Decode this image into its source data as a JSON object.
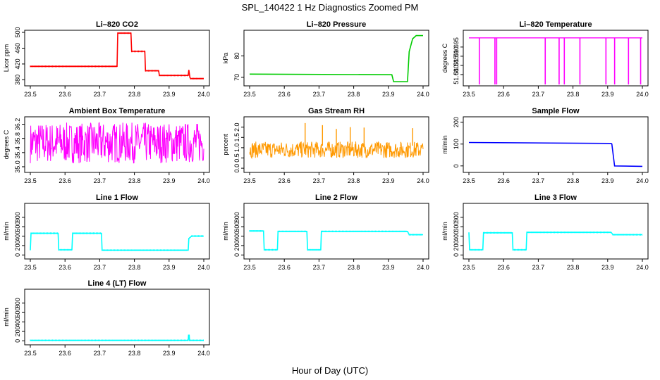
{
  "figure": {
    "title": "SPL_140422  1 Hz Diagnostics Zoomed PM",
    "xlabel": "Hour of Day (UTC)"
  },
  "chart_data": [
    {
      "id": "co2",
      "type": "line",
      "title": "Li–820 CO2",
      "ylabel": "Licor ppm",
      "color": "#ff0000",
      "xlim": [
        23.5,
        24.0
      ],
      "ylim": [
        370,
        500
      ],
      "yticks": [
        "380",
        "420",
        "460",
        "500"
      ],
      "xticks": [
        "23.5",
        "23.6",
        "23.7",
        "23.8",
        "23.9",
        "24.0"
      ],
      "x": [
        23.5,
        23.75,
        23.752,
        23.79,
        23.792,
        23.83,
        23.832,
        23.87,
        23.872,
        23.955,
        23.957,
        23.96,
        23.962,
        24.0
      ],
      "y": [
        414,
        414,
        498,
        498,
        452,
        452,
        403,
        403,
        391,
        391,
        405,
        386,
        383,
        383
      ]
    },
    {
      "id": "pressure",
      "type": "line",
      "title": "Li–820 Pressure",
      "ylabel": "kPa",
      "color": "#00cc00",
      "xlim": [
        23.5,
        24.0
      ],
      "ylim": [
        67,
        91
      ],
      "yticks": [
        "70",
        "80"
      ],
      "xticks": [
        "23.5",
        "23.6",
        "23.7",
        "23.8",
        "23.9",
        "24.0"
      ],
      "x": [
        23.5,
        23.91,
        23.915,
        23.955,
        23.96,
        23.97,
        23.98,
        24.0
      ],
      "y": [
        71.5,
        71.2,
        68.0,
        68.0,
        82.0,
        88.0,
        89.5,
        89.5
      ]
    },
    {
      "id": "temp",
      "type": "line",
      "title": "Li–820 Temperature",
      "ylabel": "degrees C",
      "color": "#ff00ff",
      "xlim": [
        23.5,
        24.0
      ],
      "ylim": [
        51.675,
        51.703
      ],
      "yticks": [
        "51.680",
        "51.685",
        "51.690",
        "51.695"
      ],
      "xticks": [
        "23.5",
        "23.6",
        "23.7",
        "23.8",
        "23.9",
        "24.0"
      ],
      "baseline": 51.7,
      "drops": [
        23.53,
        23.575,
        23.58,
        23.72,
        23.76,
        23.775,
        23.82,
        23.895,
        23.92,
        23.96,
        23.995
      ]
    },
    {
      "id": "ambient",
      "type": "line",
      "title": "Ambient Box Temperature",
      "ylabel": "degrees C",
      "color": "#ff00ff",
      "xlim": [
        23.5,
        24.0
      ],
      "ylim": [
        34.9,
        36.35
      ],
      "yticks": [
        "35.0",
        "35.4",
        "35.8",
        "36.2"
      ],
      "xticks": [
        "23.5",
        "23.6",
        "23.7",
        "23.8",
        "23.9",
        "24.0"
      ],
      "noise_range": [
        35.1,
        36.25
      ]
    },
    {
      "id": "rh",
      "type": "line",
      "title": "Gas Stream RH",
      "ylabel": "percent",
      "color": "#ff9900",
      "xlim": [
        23.5,
        24.0
      ],
      "ylim": [
        -0.1,
        2.4
      ],
      "yticks": [
        "0.0",
        "0.5",
        "1.0",
        "1.5",
        "2.0"
      ],
      "xticks": [
        "23.5",
        "23.6",
        "23.7",
        "23.8",
        "23.9",
        "24.0"
      ],
      "noise_range": [
        0.5,
        1.3
      ],
      "spikes": [
        23.66,
        23.71,
        23.75,
        23.79,
        23.83,
        23.97
      ]
    },
    {
      "id": "sample_flow",
      "type": "line",
      "title": "Sample Flow",
      "ylabel": "ml/min",
      "color": "#0000ff",
      "xlim": [
        23.5,
        24.0
      ],
      "ylim": [
        -20,
        215
      ],
      "yticks": [
        "0",
        "100",
        "200"
      ],
      "xticks": [
        "23.5",
        "23.6",
        "23.7",
        "23.8",
        "23.9",
        "24.0"
      ],
      "x": [
        23.5,
        23.91,
        23.912,
        23.92,
        24.0
      ],
      "y": [
        107,
        103,
        100,
        0,
        -2
      ]
    },
    {
      "id": "line1",
      "type": "line",
      "title": "Line 1 Flow",
      "ylabel": "ml/min",
      "color": "#00ffff",
      "xlim": [
        23.5,
        24.0
      ],
      "ylim": [
        -40,
        1050
      ],
      "yticks": [
        "0",
        "200",
        "400",
        "600",
        "800"
      ],
      "xticks": [
        "23.5",
        "23.6",
        "23.7",
        "23.8",
        "23.9",
        "24.0"
      ],
      "x": [
        23.5,
        23.502,
        23.58,
        23.582,
        23.62,
        23.622,
        23.705,
        23.707,
        23.955,
        23.957,
        23.965,
        24.0
      ],
      "y": [
        100,
        460,
        460,
        110,
        110,
        460,
        460,
        100,
        100,
        350,
        400,
        400
      ]
    },
    {
      "id": "line2",
      "type": "line",
      "title": "Line 2 Flow",
      "ylabel": "ml/min",
      "color": "#00ffff",
      "xlim": [
        23.5,
        24.0
      ],
      "ylim": [
        -40,
        1050
      ],
      "yticks": [
        "0",
        "200",
        "400",
        "600",
        "800"
      ],
      "xticks": [
        "23.5",
        "23.6",
        "23.7",
        "23.8",
        "23.9",
        "24.0"
      ],
      "x": [
        23.5,
        23.54,
        23.542,
        23.58,
        23.582,
        23.665,
        23.667,
        23.705,
        23.707,
        23.955,
        23.96,
        24.0
      ],
      "y": [
        510,
        510,
        110,
        110,
        500,
        500,
        110,
        110,
        500,
        500,
        430,
        430
      ]
    },
    {
      "id": "line3",
      "type": "line",
      "title": "Line 3 Flow",
      "ylabel": "ml/min",
      "color": "#00ffff",
      "xlim": [
        23.5,
        24.0
      ],
      "ylim": [
        -40,
        1050
      ],
      "yticks": [
        "0",
        "200",
        "400",
        "600",
        "800"
      ],
      "xticks": [
        "23.5",
        "23.6",
        "23.7",
        "23.8",
        "23.9",
        "24.0"
      ],
      "x": [
        23.5,
        23.502,
        23.504,
        23.54,
        23.542,
        23.625,
        23.627,
        23.665,
        23.667,
        23.91,
        23.915,
        24.0
      ],
      "y": [
        480,
        110,
        110,
        110,
        470,
        470,
        110,
        110,
        480,
        480,
        430,
        430
      ]
    },
    {
      "id": "line4",
      "type": "line",
      "title": "Line 4 (LT) Flow",
      "ylabel": "ml/min",
      "color": "#00ffff",
      "xlim": [
        23.5,
        24.0
      ],
      "ylim": [
        -40,
        1050
      ],
      "yticks": [
        "0",
        "200",
        "400",
        "600",
        "800"
      ],
      "xticks": [
        "23.5",
        "23.6",
        "23.7",
        "23.8",
        "23.9",
        "24.0"
      ],
      "x": [
        23.5,
        23.955,
        23.956,
        23.958,
        23.959,
        24.0
      ],
      "y": [
        10,
        10,
        120,
        120,
        10,
        10
      ]
    }
  ]
}
